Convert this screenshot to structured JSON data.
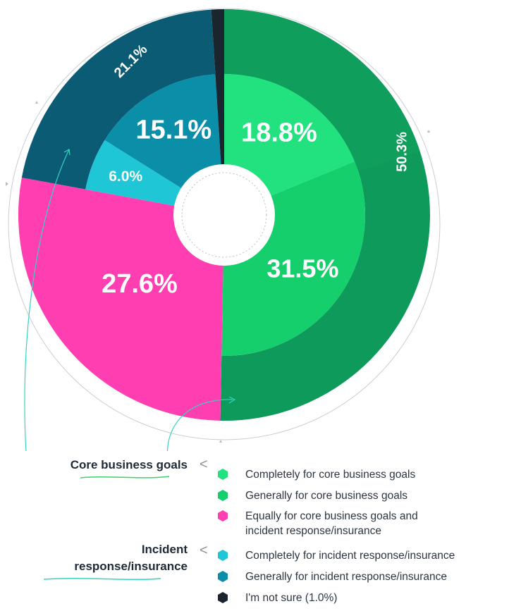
{
  "chart_data": {
    "type": "pie",
    "variant": "nested-donut",
    "title": "",
    "outer_ring": [
      {
        "label": "Core business goals",
        "value": 50.3,
        "display": "50.3%",
        "color": "#0e9a5a"
      },
      {
        "label": "Incident response/insurance",
        "value": 21.1,
        "display": "21.1%",
        "color": "#0a5b73"
      }
    ],
    "inner_ring": [
      {
        "label": "Completely for core business goals",
        "value": 18.8,
        "display": "18.8%",
        "color": "#22e27f"
      },
      {
        "label": "Generally for core business goals",
        "value": 31.5,
        "display": "31.5%",
        "color": "#14cf6b"
      },
      {
        "label": "Equally for core business goals and incident response/insurance",
        "value": 27.6,
        "display": "27.6%",
        "color": "#ff3fb1"
      },
      {
        "label": "Completely for incident response/insurance",
        "value": 6.0,
        "display": "6.0%",
        "color": "#1fc7d6"
      },
      {
        "label": "Generally for incident response/insurance",
        "value": 15.1,
        "display": "15.1%",
        "color": "#0b8ea8"
      },
      {
        "label": "I'm not sure",
        "value": 1.0,
        "display": "",
        "color": "#1b2530"
      }
    ]
  },
  "legend": {
    "groups": [
      {
        "label": "Core business goals"
      },
      {
        "label_line1": "Incident",
        "label_line2": "response/insurance"
      }
    ],
    "items": [
      {
        "text": "Completely for core business goals",
        "color": "#22e27f"
      },
      {
        "text": "Generally for core business goals",
        "color": "#14cf6b"
      },
      {
        "text": "Equally for core business goals and incident response/insurance",
        "color": "#ff3fb1"
      },
      {
        "text": "Completely for incident response/insurance",
        "color": "#1fc7d6"
      },
      {
        "text": "Generally for incident response/insurance",
        "color": "#0b8ea8"
      },
      {
        "text": "I'm not sure (1.0%)",
        "color": "#1b2530"
      }
    ]
  },
  "brackets": {
    "symbol": "<"
  }
}
